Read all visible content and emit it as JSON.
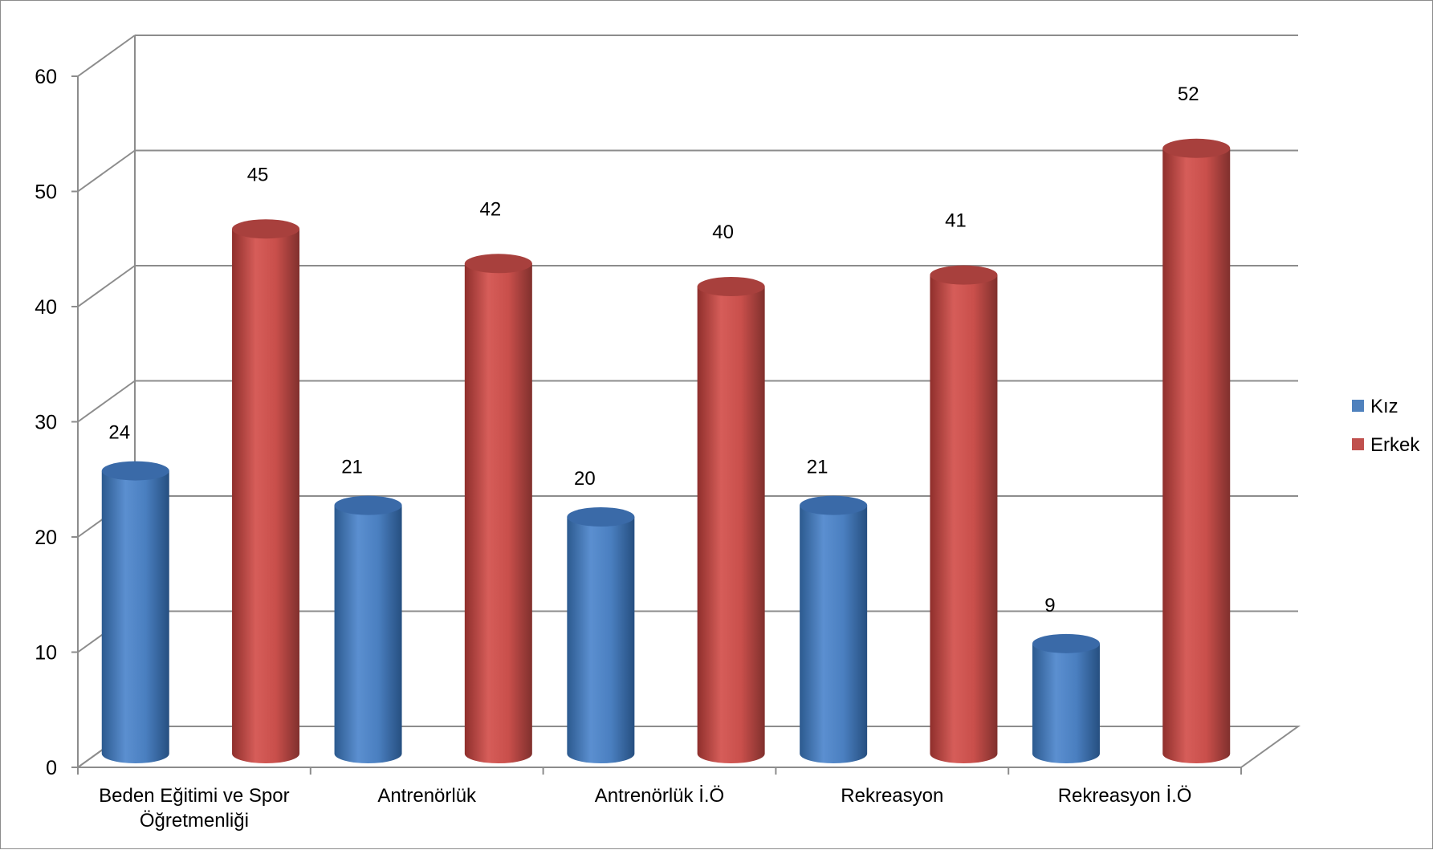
{
  "chart_data": {
    "type": "bar",
    "style": "3d-cylinder",
    "title": "",
    "xlabel": "",
    "ylabel": "",
    "ylim": [
      0,
      60
    ],
    "yticks": [
      "0",
      "10",
      "20",
      "30",
      "40",
      "50",
      "60"
    ],
    "grid": true,
    "legend_position": "right",
    "categories": [
      "Beden Eğitimi ve Spor Öğretmenliği",
      "Antrenörlük",
      "Antrenörlük İ.Ö",
      "Rekreasyon",
      "Rekreasyon İ.Ö"
    ],
    "series": [
      {
        "name": "Kız",
        "color": "#4f81bd",
        "values": [
          24,
          21,
          20,
          21,
          9
        ]
      },
      {
        "name": "Erkek",
        "color": "#c0504d",
        "values": [
          45,
          42,
          40,
          41,
          52
        ]
      }
    ]
  }
}
